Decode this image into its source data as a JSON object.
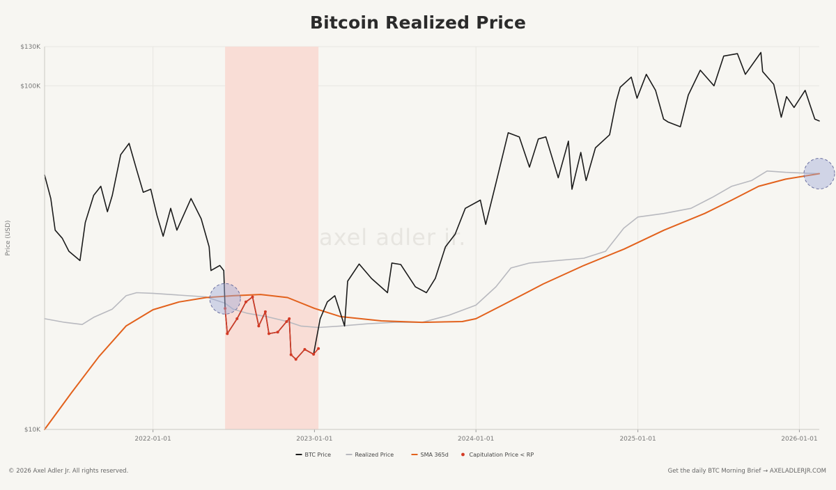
{
  "chart_data": {
    "type": "line",
    "title": "Bitcoin Realized Price",
    "ylabel": "Price (USD)",
    "yscale": "log",
    "ylim": [
      10000,
      130000
    ],
    "yticks": [
      {
        "value": 10000,
        "label": "$10K"
      },
      {
        "value": 100000,
        "label": "$100K"
      },
      {
        "value": 130000,
        "label": "$130K"
      }
    ],
    "xlim": [
      "2021-05-01",
      "2026-02-15"
    ],
    "xticks": [
      "2022-01-01",
      "2023-01-01",
      "2024-01-01",
      "2025-01-01",
      "2026-01-01"
    ],
    "grid": true,
    "legend_position": "bottom-center",
    "shaded_region": {
      "start": "2022-06-13",
      "end": "2023-01-10",
      "color": "#f9ddd6"
    },
    "highlight_markers": [
      {
        "date": "2022-06-13",
        "value": 24000
      },
      {
        "date": "2026-02-15",
        "value": 55500
      }
    ],
    "series": [
      {
        "name": "BTC Price",
        "color": "#1a1a1a",
        "points": [
          [
            "2021-05-01",
            55000
          ],
          [
            "2021-05-15",
            47000
          ],
          [
            "2021-05-25",
            38000
          ],
          [
            "2021-06-10",
            36000
          ],
          [
            "2021-06-25",
            33000
          ],
          [
            "2021-07-20",
            31000
          ],
          [
            "2021-08-01",
            40000
          ],
          [
            "2021-08-20",
            48000
          ],
          [
            "2021-09-05",
            51000
          ],
          [
            "2021-09-20",
            43000
          ],
          [
            "2021-10-01",
            48000
          ],
          [
            "2021-10-20",
            63000
          ],
          [
            "2021-11-08",
            68000
          ],
          [
            "2021-11-25",
            57000
          ],
          [
            "2021-12-10",
            49000
          ],
          [
            "2021-12-27",
            50000
          ],
          [
            "2022-01-10",
            42000
          ],
          [
            "2022-01-24",
            36500
          ],
          [
            "2022-02-10",
            44000
          ],
          [
            "2022-02-24",
            38000
          ],
          [
            "2022-03-28",
            47000
          ],
          [
            "2022-04-20",
            41000
          ],
          [
            "2022-05-08",
            34000
          ],
          [
            "2022-05-12",
            29000
          ],
          [
            "2022-06-01",
            30000
          ],
          [
            "2022-06-10",
            29000
          ],
          [
            "2022-06-13",
            22500
          ],
          [
            "2022-06-18",
            19000
          ],
          [
            "2022-07-10",
            21000
          ],
          [
            "2022-07-30",
            23500
          ],
          [
            "2022-08-14",
            24300
          ],
          [
            "2022-08-28",
            20000
          ],
          [
            "2022-09-12",
            22000
          ],
          [
            "2022-09-20",
            19000
          ],
          [
            "2022-10-10",
            19200
          ],
          [
            "2022-10-30",
            20600
          ],
          [
            "2022-11-05",
            21000
          ],
          [
            "2022-11-09",
            16500
          ],
          [
            "2022-11-20",
            16000
          ],
          [
            "2022-12-10",
            17100
          ],
          [
            "2022-12-30",
            16550
          ],
          [
            "2023-01-14",
            21000
          ],
          [
            "2023-01-30",
            23500
          ],
          [
            "2023-02-16",
            24500
          ],
          [
            "2023-03-10",
            20000
          ],
          [
            "2023-03-17",
            27000
          ],
          [
            "2023-04-12",
            30300
          ],
          [
            "2023-05-10",
            27500
          ],
          [
            "2023-06-15",
            25000
          ],
          [
            "2023-06-25",
            30500
          ],
          [
            "2023-07-15",
            30200
          ],
          [
            "2023-08-17",
            26000
          ],
          [
            "2023-09-11",
            25000
          ],
          [
            "2023-10-01",
            27500
          ],
          [
            "2023-10-24",
            34000
          ],
          [
            "2023-11-15",
            37000
          ],
          [
            "2023-12-08",
            44000
          ],
          [
            "2024-01-11",
            46500
          ],
          [
            "2024-01-23",
            39500
          ],
          [
            "2024-02-15",
            52000
          ],
          [
            "2024-03-14",
            73000
          ],
          [
            "2024-04-08",
            71000
          ],
          [
            "2024-05-01",
            58000
          ],
          [
            "2024-05-21",
            70000
          ],
          [
            "2024-06-07",
            71000
          ],
          [
            "2024-07-05",
            54000
          ],
          [
            "2024-07-28",
            69000
          ],
          [
            "2024-08-05",
            50000
          ],
          [
            "2024-08-25",
            64000
          ],
          [
            "2024-09-06",
            53000
          ],
          [
            "2024-09-27",
            66000
          ],
          [
            "2024-10-29",
            72000
          ],
          [
            "2024-11-13",
            90000
          ],
          [
            "2024-11-22",
            99000
          ],
          [
            "2024-12-17",
            106000
          ],
          [
            "2024-12-30",
            92000
          ],
          [
            "2025-01-20",
            108000
          ],
          [
            "2025-02-10",
            97000
          ],
          [
            "2025-02-28",
            80000
          ],
          [
            "2025-03-10",
            78500
          ],
          [
            "2025-04-07",
            76000
          ],
          [
            "2025-04-25",
            94000
          ],
          [
            "2025-05-22",
            111000
          ],
          [
            "2025-06-22",
            100000
          ],
          [
            "2025-07-14",
            122000
          ],
          [
            "2025-08-14",
            124000
          ],
          [
            "2025-09-01",
            108000
          ],
          [
            "2025-10-06",
            125000
          ],
          [
            "2025-10-10",
            110000
          ],
          [
            "2025-11-04",
            101000
          ],
          [
            "2025-11-21",
            81000
          ],
          [
            "2025-12-03",
            93000
          ],
          [
            "2025-12-20",
            86500
          ],
          [
            "2026-01-14",
            97000
          ],
          [
            "2026-01-25",
            88000
          ],
          [
            "2026-02-05",
            80000
          ],
          [
            "2026-02-15",
            79000
          ]
        ]
      },
      {
        "name": "Realized Price",
        "color": "#b8b9bf",
        "points": [
          [
            "2021-05-01",
            21000
          ],
          [
            "2021-06-15",
            20500
          ],
          [
            "2021-07-25",
            20200
          ],
          [
            "2021-08-20",
            21200
          ],
          [
            "2021-10-01",
            22400
          ],
          [
            "2021-11-01",
            24500
          ],
          [
            "2021-11-25",
            25000
          ],
          [
            "2022-01-01",
            24900
          ],
          [
            "2022-03-01",
            24600
          ],
          [
            "2022-05-01",
            24300
          ],
          [
            "2022-06-13",
            23300
          ],
          [
            "2022-07-01",
            22400
          ],
          [
            "2022-08-01",
            21800
          ],
          [
            "2022-09-15",
            21300
          ],
          [
            "2022-11-01",
            20600
          ],
          [
            "2022-12-01",
            20000
          ],
          [
            "2023-01-10",
            19800
          ],
          [
            "2023-03-01",
            20000
          ],
          [
            "2023-05-01",
            20300
          ],
          [
            "2023-07-01",
            20500
          ],
          [
            "2023-09-01",
            20500
          ],
          [
            "2023-11-01",
            21500
          ],
          [
            "2024-01-01",
            23000
          ],
          [
            "2024-02-15",
            26000
          ],
          [
            "2024-03-20",
            29500
          ],
          [
            "2024-05-01",
            30500
          ],
          [
            "2024-07-01",
            31000
          ],
          [
            "2024-09-01",
            31500
          ],
          [
            "2024-10-20",
            33000
          ],
          [
            "2024-11-30",
            38500
          ],
          [
            "2025-01-01",
            41500
          ],
          [
            "2025-03-01",
            42500
          ],
          [
            "2025-05-01",
            44000
          ],
          [
            "2025-06-20",
            47500
          ],
          [
            "2025-08-01",
            51000
          ],
          [
            "2025-09-15",
            53000
          ],
          [
            "2025-10-20",
            56500
          ],
          [
            "2025-12-01",
            56000
          ],
          [
            "2026-01-01",
            55800
          ],
          [
            "2026-02-15",
            55500
          ]
        ]
      },
      {
        "name": "SMA 365d",
        "color": "#e2611c",
        "points": [
          [
            "2021-05-01",
            10000
          ],
          [
            "2021-07-01",
            12800
          ],
          [
            "2021-09-01",
            16300
          ],
          [
            "2021-11-01",
            20000
          ],
          [
            "2022-01-01",
            22300
          ],
          [
            "2022-03-01",
            23500
          ],
          [
            "2022-05-01",
            24200
          ],
          [
            "2022-07-01",
            24500
          ],
          [
            "2022-09-01",
            24700
          ],
          [
            "2022-11-01",
            24200
          ],
          [
            "2023-01-01",
            22500
          ],
          [
            "2023-03-01",
            21300
          ],
          [
            "2023-06-01",
            20700
          ],
          [
            "2023-09-01",
            20500
          ],
          [
            "2023-12-01",
            20600
          ],
          [
            "2024-01-01",
            21000
          ],
          [
            "2024-03-01",
            23000
          ],
          [
            "2024-06-01",
            26500
          ],
          [
            "2024-09-01",
            30000
          ],
          [
            "2024-12-01",
            33500
          ],
          [
            "2025-03-01",
            38000
          ],
          [
            "2025-06-01",
            42500
          ],
          [
            "2025-08-01",
            46500
          ],
          [
            "2025-10-01",
            51000
          ],
          [
            "2025-12-01",
            53500
          ],
          [
            "2026-02-15",
            55500
          ]
        ]
      },
      {
        "name": "Capitulation Price < RP",
        "color": "#d33a25",
        "points": [
          [
            "2022-06-13",
            22500
          ],
          [
            "2022-06-18",
            19000
          ],
          [
            "2022-07-10",
            21000
          ],
          [
            "2022-07-30",
            23500
          ],
          [
            "2022-08-14",
            24300
          ],
          [
            "2022-08-28",
            20000
          ],
          [
            "2022-09-12",
            22000
          ],
          [
            "2022-09-20",
            19000
          ],
          [
            "2022-10-10",
            19200
          ],
          [
            "2022-10-30",
            20600
          ],
          [
            "2022-11-05",
            21000
          ],
          [
            "2022-11-09",
            16500
          ],
          [
            "2022-11-20",
            16000
          ],
          [
            "2022-12-10",
            17100
          ],
          [
            "2022-12-30",
            16550
          ],
          [
            "2023-01-10",
            17200
          ]
        ]
      }
    ]
  },
  "watermark": "axel adler jr.",
  "footer": {
    "left": "© 2026 Axel Adler Jr. All rights reserved.",
    "right": "Get the daily BTC Morning Brief → AXELADLERJR.COM"
  }
}
